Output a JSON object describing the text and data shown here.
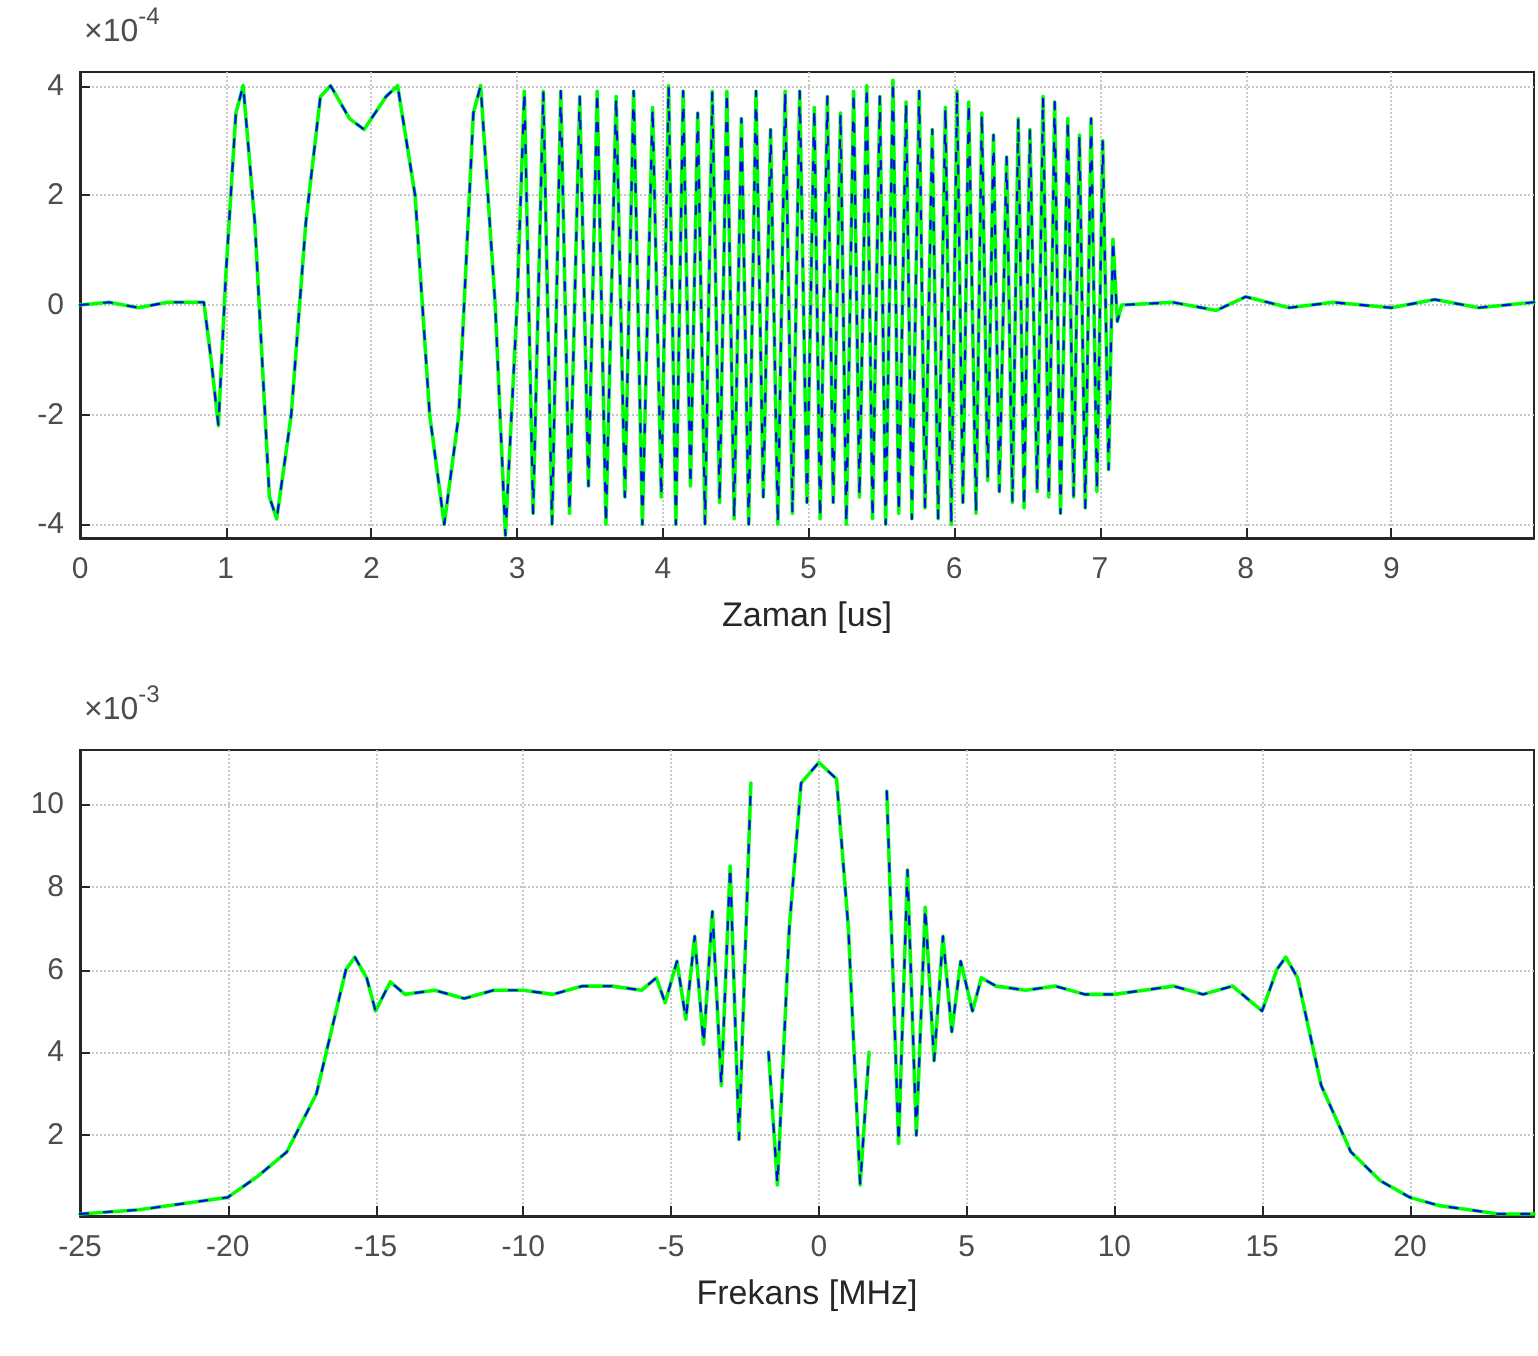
{
  "chart_data": [
    {
      "type": "line",
      "xlabel": "Zaman [us]",
      "annotations": [
        "×10$^{-4}$"
      ],
      "xlim": [
        0,
        9.98
      ],
      "ylim": [
        -4.25,
        4.25
      ],
      "xticks": [
        0,
        1,
        2,
        3,
        4,
        5,
        6,
        7,
        8,
        9
      ],
      "yticks": [
        -4,
        -2,
        0,
        2,
        4
      ],
      "grid": true,
      "marker": "none",
      "x": [
        0,
        0.2,
        0.4,
        0.6,
        0.85,
        0.9,
        0.95,
        1.0,
        1.07,
        1.12,
        1.2,
        1.3,
        1.35,
        1.45,
        1.55,
        1.65,
        1.72,
        1.85,
        1.95,
        2.1,
        2.18,
        2.3,
        2.4,
        2.5,
        2.6,
        2.7,
        2.75,
        2.85,
        2.92,
        3.0,
        3.05,
        3.11,
        3.18,
        3.24,
        3.3,
        3.36,
        3.43,
        3.49,
        3.55,
        3.61,
        3.68,
        3.74,
        3.8,
        3.86,
        3.93,
        3.99,
        4.04,
        4.09,
        4.14,
        4.19,
        4.24,
        4.29,
        4.34,
        4.39,
        4.44,
        4.49,
        4.54,
        4.59,
        4.64,
        4.69,
        4.74,
        4.79,
        4.84,
        4.89,
        4.94,
        4.99,
        5.04,
        5.08,
        5.13,
        5.17,
        5.22,
        5.26,
        5.31,
        5.35,
        5.4,
        5.44,
        5.49,
        5.53,
        5.58,
        5.62,
        5.67,
        5.71,
        5.76,
        5.8,
        5.85,
        5.89,
        5.94,
        5.98,
        6.02,
        6.06,
        6.1,
        6.15,
        6.19,
        6.23,
        6.27,
        6.31,
        6.36,
        6.4,
        6.44,
        6.48,
        6.52,
        6.57,
        6.61,
        6.65,
        6.69,
        6.73,
        6.78,
        6.82,
        6.86,
        6.9,
        6.94,
        6.98,
        7.02,
        7.06,
        7.09,
        7.12,
        7.15,
        7.5,
        7.8,
        8.0,
        8.3,
        8.6,
        9.0,
        9.3,
        9.6,
        9.98
      ],
      "series": [
        {
          "color": "#00ff00",
          "line_style": "solid",
          "values": [
            0,
            0.05,
            -0.05,
            0.05,
            0.05,
            -1,
            -2.2,
            0.5,
            3.5,
            4,
            1.5,
            -3.5,
            -3.9,
            -2,
            1.5,
            3.8,
            4,
            3.4,
            3.2,
            3.8,
            4,
            2,
            -2,
            -4,
            -2,
            3.5,
            4,
            0,
            -4.2,
            0,
            3.9,
            -3.8,
            3.9,
            -4,
            3.9,
            -3.8,
            3.8,
            -3.3,
            3.9,
            -4,
            3.8,
            -3.5,
            3.9,
            -4,
            3.6,
            -3.5,
            4,
            -4,
            3.9,
            -3.3,
            3.5,
            -4,
            3.9,
            -3.6,
            3.9,
            -3.9,
            3.4,
            -4,
            3.9,
            -3.5,
            3.2,
            -4,
            3.9,
            -3.8,
            3.9,
            -3.6,
            3.6,
            -3.9,
            3.8,
            -3.6,
            3.5,
            -4,
            3.9,
            -3.5,
            4,
            -3.9,
            3.8,
            -4,
            4.1,
            -3.8,
            3.7,
            -3.9,
            3.9,
            -3.7,
            3.2,
            -3.9,
            3.6,
            -4,
            3.9,
            -3.6,
            3.7,
            -3.8,
            3.5,
            -3.2,
            3.1,
            -3.4,
            2.7,
            -3.6,
            3.4,
            -3.7,
            3.2,
            -3.4,
            3.8,
            -3.5,
            3.7,
            -3.8,
            3.4,
            -3.5,
            3.1,
            -3.7,
            3.4,
            -3.4,
            3,
            -3,
            1.2,
            -0.3,
            0,
            0.05,
            -0.1,
            0.15,
            -0.05,
            0.05,
            -0.05,
            0.1,
            -0.05,
            0.05
          ]
        },
        {
          "color": "#0000ff",
          "line_style": "dashed",
          "values": [
            0,
            0.05,
            -0.05,
            0.05,
            0.05,
            -1,
            -2.2,
            0.5,
            3.5,
            4,
            1.5,
            -3.5,
            -3.9,
            -2,
            1.5,
            3.8,
            4,
            3.4,
            3.2,
            3.8,
            4,
            2,
            -2,
            -4,
            -2,
            3.5,
            4,
            0,
            -4.2,
            0,
            3.9,
            -3.8,
            3.9,
            -4,
            3.9,
            -3.8,
            3.8,
            -3.3,
            3.9,
            -4,
            3.8,
            -3.5,
            3.9,
            -4,
            3.6,
            -3.5,
            4,
            -4,
            3.9,
            -3.3,
            3.5,
            -4,
            3.9,
            -3.6,
            3.9,
            -3.9,
            3.4,
            -4,
            3.9,
            -3.5,
            3.2,
            -4,
            3.9,
            -3.8,
            3.9,
            -3.6,
            3.6,
            -3.9,
            3.8,
            -3.6,
            3.5,
            -4,
            3.9,
            -3.5,
            4,
            -3.9,
            3.8,
            -4,
            4.1,
            -3.8,
            3.7,
            -3.9,
            3.9,
            -3.7,
            3.2,
            -3.9,
            3.6,
            -4,
            3.9,
            -3.6,
            3.7,
            -3.8,
            3.5,
            -3.2,
            3.1,
            -3.4,
            2.7,
            -3.6,
            3.4,
            -3.7,
            3.2,
            -3.4,
            3.8,
            -3.5,
            3.7,
            -3.8,
            3.4,
            -3.5,
            3.1,
            -3.7,
            3.4,
            -3.4,
            3,
            -3,
            1.2,
            -0.3,
            0,
            0.05,
            -0.1,
            0.15,
            -0.05,
            0.05,
            -0.05,
            0.1,
            -0.05,
            0.05
          ]
        }
      ]
    },
    {
      "type": "line",
      "xlabel": "Frekans [MHz]",
      "annotations": [
        "×10$^{-3}$"
      ],
      "xlim": [
        -25,
        24.2
      ],
      "ylim": [
        0.05,
        11.3
      ],
      "xticks": [
        -25,
        -20,
        -15,
        -10,
        -5,
        0,
        5,
        10,
        15,
        20
      ],
      "yticks": [
        2,
        4,
        6,
        8,
        10
      ],
      "grid": true,
      "marker": "none",
      "x": [
        -25,
        -23,
        -21,
        -20,
        -19,
        -18,
        -17,
        -16.5,
        -16,
        -15.7,
        -15.3,
        -15,
        -14.5,
        -14,
        -13,
        -12,
        -11,
        -10,
        -9,
        -8,
        -7,
        -6,
        -5.5,
        -5.2,
        -4.8,
        -4.5,
        -4.2,
        -3.9,
        -3.6,
        -3.3,
        -3.0,
        -2.7,
        -2.3,
        -2.0,
        -1.7,
        -1.4,
        -1.0,
        -0.6,
        0,
        0.6,
        1.0,
        1.4,
        1.7,
        2.0,
        2.3,
        2.7,
        3.0,
        3.3,
        3.6,
        3.9,
        4.2,
        4.5,
        4.8,
        5.2,
        5.5,
        6,
        7,
        8,
        9,
        10,
        11,
        12,
        13,
        14,
        14.5,
        15,
        15.5,
        15.8,
        16.2,
        16.6,
        17,
        18,
        19,
        20,
        21,
        22,
        23,
        24.2
      ],
      "series": [
        {
          "color": "#00ff00",
          "line_style": "solid",
          "values": [
            0.1,
            0.2,
            0.4,
            0.5,
            1.0,
            1.6,
            3,
            4.5,
            6,
            6.3,
            5.8,
            5,
            5.7,
            5.4,
            5.5,
            5.3,
            5.5,
            5.5,
            5.4,
            5.6,
            5.6,
            5.5,
            5.8,
            5.2,
            6.2,
            4.8,
            6.8,
            4.2,
            7.4,
            3.2,
            8.5,
            1.9,
            10.5,
            null,
            4,
            0.8,
            7,
            10.5,
            11,
            10.6,
            7,
            0.8,
            4,
            null,
            10.3,
            1.8,
            8.4,
            2.0,
            7.5,
            3.8,
            6.8,
            4.5,
            6.2,
            5.0,
            5.8,
            5.6,
            5.5,
            5.6,
            5.4,
            5.4,
            5.5,
            5.6,
            5.4,
            5.6,
            5.3,
            5.0,
            6.0,
            6.3,
            5.8,
            4.5,
            3.2,
            1.6,
            0.9,
            0.5,
            0.3,
            0.2,
            0.1,
            0.1
          ]
        },
        {
          "color": "#0000ff",
          "line_style": "dashed",
          "values": [
            0.1,
            0.2,
            0.4,
            0.5,
            1.0,
            1.6,
            3,
            4.5,
            6,
            6.3,
            5.8,
            5,
            5.7,
            5.4,
            5.5,
            5.3,
            5.5,
            5.5,
            5.4,
            5.6,
            5.6,
            5.5,
            5.8,
            5.2,
            6.2,
            4.8,
            6.8,
            4.2,
            7.4,
            3.2,
            8.5,
            1.9,
            10.5,
            null,
            4,
            0.8,
            7,
            10.5,
            11,
            10.6,
            7,
            0.8,
            4,
            null,
            10.3,
            1.8,
            8.4,
            2.0,
            7.5,
            3.8,
            6.8,
            4.5,
            6.2,
            5.0,
            5.8,
            5.6,
            5.5,
            5.6,
            5.4,
            5.4,
            5.5,
            5.6,
            5.4,
            5.6,
            5.3,
            5.0,
            6.0,
            6.3,
            5.8,
            4.5,
            3.2,
            1.6,
            0.9,
            0.5,
            0.3,
            0.2,
            0.1,
            0.1
          ]
        }
      ]
    }
  ]
}
